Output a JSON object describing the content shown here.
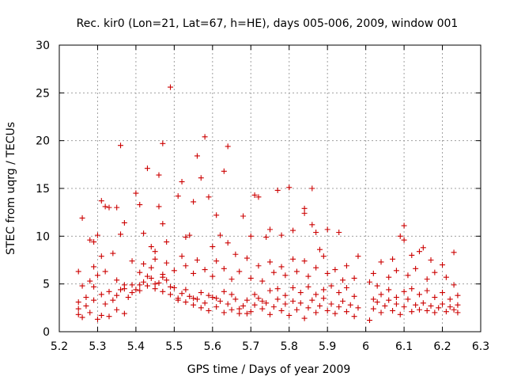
{
  "chart_data": {
    "type": "scatter",
    "title": "Rec. kir0 (Lon=21, Lat=67, h=HE), days 005-006, 2009, window 001",
    "xlabel": "GPS time / Days of year 2009",
    "ylabel": "STEC from uqrg / TECUs",
    "xlim": [
      5.2,
      6.3
    ],
    "ylim": [
      0,
      30
    ],
    "x_ticks": [
      "5.2",
      "5.3",
      "5.4",
      "5.5",
      "5.6",
      "5.7",
      "5.8",
      "5.9",
      "6",
      "6.1",
      "6.2",
      "6.3"
    ],
    "y_ticks": [
      "0",
      "5",
      "10",
      "15",
      "20",
      "25",
      "30"
    ],
    "grid": true,
    "marker": "+",
    "color": "#cc0000",
    "series": [
      {
        "points": [
          [
            5.25,
            6.3
          ],
          [
            5.26,
            11.9
          ],
          [
            5.28,
            9.6
          ],
          [
            5.29,
            9.4
          ],
          [
            5.3,
            10.1
          ],
          [
            5.31,
            13.7
          ],
          [
            5.32,
            13.1
          ],
          [
            5.33,
            13.0
          ],
          [
            5.35,
            13.0
          ],
          [
            5.36,
            19.5
          ],
          [
            5.37,
            11.4
          ],
          [
            5.36,
            10.2
          ],
          [
            5.4,
            14.5
          ],
          [
            5.41,
            13.3
          ],
          [
            5.42,
            10.3
          ],
          [
            5.43,
            17.1
          ],
          [
            5.44,
            8.9
          ],
          [
            5.45,
            8.4
          ],
          [
            5.46,
            16.4
          ],
          [
            5.46,
            13.1
          ],
          [
            5.47,
            19.7
          ],
          [
            5.47,
            11.3
          ],
          [
            5.48,
            9.4
          ],
          [
            5.49,
            25.6
          ],
          [
            5.51,
            14.2
          ],
          [
            5.52,
            15.7
          ],
          [
            5.53,
            9.9
          ],
          [
            5.54,
            10.1
          ],
          [
            5.55,
            13.6
          ],
          [
            5.56,
            18.4
          ],
          [
            5.57,
            16.1
          ],
          [
            5.58,
            20.4
          ],
          [
            5.59,
            14.1
          ],
          [
            5.6,
            8.9
          ],
          [
            5.61,
            12.2
          ],
          [
            5.62,
            10.1
          ],
          [
            5.63,
            16.8
          ],
          [
            5.64,
            19.4
          ],
          [
            5.64,
            9.3
          ],
          [
            5.66,
            8.1
          ],
          [
            5.68,
            12.1
          ],
          [
            5.7,
            10.0
          ],
          [
            5.71,
            14.3
          ],
          [
            5.72,
            14.1
          ],
          [
            5.74,
            9.9
          ],
          [
            5.75,
            10.7
          ],
          [
            5.77,
            14.8
          ],
          [
            5.78,
            10.1
          ],
          [
            5.8,
            15.1
          ],
          [
            5.81,
            10.6
          ],
          [
            5.84,
            12.9
          ],
          [
            5.84,
            12.4
          ],
          [
            5.86,
            15.0
          ],
          [
            5.86,
            11.2
          ],
          [
            5.87,
            10.4
          ],
          [
            5.88,
            8.6
          ],
          [
            5.9,
            10.7
          ],
          [
            5.93,
            10.4
          ],
          [
            6.02,
            6.1
          ],
          [
            6.04,
            7.3
          ],
          [
            6.07,
            7.6
          ],
          [
            6.09,
            10.0
          ],
          [
            6.1,
            11.1
          ],
          [
            6.1,
            9.6
          ],
          [
            6.12,
            8.0
          ],
          [
            6.14,
            8.4
          ],
          [
            6.15,
            8.8
          ],
          [
            6.17,
            7.5
          ],
          [
            6.2,
            7.0
          ],
          [
            6.23,
            8.3
          ],
          [
            5.25,
            3.1
          ],
          [
            5.25,
            2.4
          ],
          [
            5.26,
            1.5
          ],
          [
            5.27,
            3.6
          ],
          [
            5.28,
            2.0
          ],
          [
            5.29,
            4.7
          ],
          [
            5.3,
            1.3
          ],
          [
            5.31,
            3.9
          ],
          [
            5.32,
            2.9
          ],
          [
            5.33,
            1.6
          ],
          [
            5.34,
            3.3
          ],
          [
            5.35,
            2.3
          ],
          [
            5.36,
            4.4
          ],
          [
            5.37,
            1.9
          ],
          [
            5.38,
            3.6
          ],
          [
            5.39,
            4.1
          ],
          [
            5.4,
            4.4
          ],
          [
            5.41,
            4.9
          ],
          [
            5.42,
            5.2
          ],
          [
            5.43,
            4.8
          ],
          [
            5.44,
            5.6
          ],
          [
            5.45,
            4.5
          ],
          [
            5.46,
            5.1
          ],
          [
            5.47,
            4.2
          ],
          [
            5.48,
            5.4
          ],
          [
            5.49,
            3.9
          ],
          [
            5.5,
            4.6
          ],
          [
            5.51,
            3.5
          ],
          [
            5.52,
            4.0
          ],
          [
            5.53,
            3.1
          ],
          [
            5.54,
            3.7
          ],
          [
            5.55,
            2.8
          ],
          [
            5.56,
            3.4
          ],
          [
            5.57,
            2.5
          ],
          [
            5.58,
            3.0
          ],
          [
            5.59,
            2.2
          ],
          [
            5.6,
            3.6
          ],
          [
            5.61,
            2.6
          ],
          [
            5.62,
            3.2
          ],
          [
            5.63,
            2.0
          ],
          [
            5.64,
            2.9
          ],
          [
            5.65,
            2.3
          ],
          [
            5.66,
            3.4
          ],
          [
            5.67,
            1.9
          ],
          [
            5.68,
            2.7
          ],
          [
            5.69,
            3.3
          ],
          [
            5.7,
            2.1
          ],
          [
            5.71,
            2.8
          ],
          [
            5.72,
            3.5
          ],
          [
            5.73,
            2.4
          ],
          [
            5.74,
            3.0
          ],
          [
            5.75,
            1.8
          ],
          [
            5.76,
            2.6
          ],
          [
            5.77,
            3.4
          ],
          [
            5.78,
            2.2
          ],
          [
            5.79,
            2.9
          ],
          [
            5.8,
            1.7
          ],
          [
            5.81,
            3.2
          ],
          [
            5.82,
            2.3
          ],
          [
            5.83,
            3.0
          ],
          [
            5.84,
            1.4
          ],
          [
            5.85,
            2.5
          ],
          [
            5.86,
            3.3
          ],
          [
            5.87,
            2.0
          ],
          [
            5.88,
            2.7
          ],
          [
            5.89,
            3.5
          ],
          [
            5.9,
            2.2
          ],
          [
            5.91,
            2.9
          ],
          [
            5.92,
            1.9
          ],
          [
            5.93,
            2.6
          ],
          [
            5.94,
            3.2
          ],
          [
            5.95,
            2.1
          ],
          [
            5.96,
            2.8
          ],
          [
            5.97,
            1.6
          ],
          [
            5.98,
            2.5
          ],
          [
            6.01,
            1.2
          ],
          [
            6.02,
            2.4
          ],
          [
            6.03,
            3.1
          ],
          [
            6.04,
            2.0
          ],
          [
            6.05,
            2.7
          ],
          [
            6.06,
            3.3
          ],
          [
            6.07,
            2.2
          ],
          [
            6.08,
            2.9
          ],
          [
            6.09,
            1.8
          ],
          [
            6.1,
            2.6
          ],
          [
            6.11,
            3.4
          ],
          [
            6.12,
            2.1
          ],
          [
            6.13,
            2.8
          ],
          [
            6.14,
            2.3
          ],
          [
            6.15,
            3.0
          ],
          [
            6.16,
            2.2
          ],
          [
            6.17,
            2.7
          ],
          [
            6.18,
            2.0
          ],
          [
            6.19,
            2.5
          ],
          [
            6.2,
            2.9
          ],
          [
            6.21,
            2.1
          ],
          [
            6.22,
            2.6
          ],
          [
            6.23,
            2.3
          ],
          [
            6.24,
            2.8
          ],
          [
            6.24,
            2.0
          ],
          [
            5.26,
            4.8
          ],
          [
            5.28,
            5.3
          ],
          [
            5.29,
            6.8
          ],
          [
            5.3,
            5.9
          ],
          [
            5.31,
            7.9
          ],
          [
            5.32,
            6.3
          ],
          [
            5.34,
            8.2
          ],
          [
            5.35,
            5.4
          ],
          [
            5.37,
            4.9
          ],
          [
            5.39,
            7.4
          ],
          [
            5.41,
            6.2
          ],
          [
            5.42,
            7.1
          ],
          [
            5.44,
            6.7
          ],
          [
            5.45,
            7.6
          ],
          [
            5.47,
            6.0
          ],
          [
            5.48,
            7.2
          ],
          [
            5.5,
            6.4
          ],
          [
            5.52,
            7.9
          ],
          [
            5.53,
            6.9
          ],
          [
            5.55,
            6.1
          ],
          [
            5.56,
            7.5
          ],
          [
            5.58,
            6.5
          ],
          [
            5.6,
            5.8
          ],
          [
            5.61,
            7.4
          ],
          [
            5.63,
            6.6
          ],
          [
            5.65,
            5.5
          ],
          [
            5.67,
            6.3
          ],
          [
            5.69,
            7.7
          ],
          [
            5.7,
            5.6
          ],
          [
            5.72,
            6.9
          ],
          [
            5.73,
            5.3
          ],
          [
            5.75,
            7.3
          ],
          [
            5.76,
            6.2
          ],
          [
            5.78,
            6.8
          ],
          [
            5.79,
            5.9
          ],
          [
            5.81,
            7.6
          ],
          [
            5.82,
            6.3
          ],
          [
            5.84,
            7.4
          ],
          [
            5.85,
            5.8
          ],
          [
            5.87,
            6.7
          ],
          [
            5.89,
            7.9
          ],
          [
            5.9,
            6.1
          ],
          [
            5.92,
            6.5
          ],
          [
            5.94,
            5.4
          ],
          [
            5.95,
            6.9
          ],
          [
            5.97,
            5.6
          ],
          [
            5.98,
            7.9
          ],
          [
            6.01,
            5.2
          ],
          [
            6.03,
            4.8
          ],
          [
            6.06,
            5.7
          ],
          [
            6.08,
            6.4
          ],
          [
            6.11,
            5.9
          ],
          [
            6.13,
            6.6
          ],
          [
            6.16,
            5.5
          ],
          [
            6.18,
            6.2
          ],
          [
            6.21,
            5.7
          ],
          [
            6.23,
            4.9
          ],
          [
            5.25,
            1.8
          ],
          [
            5.27,
            2.7
          ],
          [
            5.29,
            3.3
          ],
          [
            5.31,
            1.7
          ],
          [
            5.33,
            4.2
          ],
          [
            5.35,
            3.8
          ],
          [
            5.37,
            4.5
          ],
          [
            5.39,
            4.9
          ],
          [
            5.41,
            4.3
          ],
          [
            5.43,
            5.8
          ],
          [
            5.45,
            5.0
          ],
          [
            5.47,
            5.7
          ],
          [
            5.49,
            4.7
          ],
          [
            5.51,
            3.3
          ],
          [
            5.53,
            4.4
          ],
          [
            5.55,
            3.5
          ],
          [
            5.57,
            4.1
          ],
          [
            5.59,
            3.8
          ],
          [
            5.61,
            3.5
          ],
          [
            5.63,
            4.2
          ],
          [
            5.65,
            3.9
          ],
          [
            5.67,
            2.4
          ],
          [
            5.69,
            1.9
          ],
          [
            5.71,
            3.9
          ],
          [
            5.73,
            3.2
          ],
          [
            5.75,
            4.3
          ],
          [
            5.77,
            4.5
          ],
          [
            5.79,
            3.8
          ],
          [
            5.81,
            4.6
          ],
          [
            5.83,
            4.1
          ],
          [
            5.85,
            4.7
          ],
          [
            5.87,
            3.9
          ],
          [
            5.89,
            4.4
          ],
          [
            5.91,
            4.8
          ],
          [
            5.93,
            4.1
          ],
          [
            5.95,
            4.6
          ],
          [
            5.97,
            3.7
          ],
          [
            6.02,
            3.4
          ],
          [
            6.04,
            3.9
          ],
          [
            6.06,
            4.4
          ],
          [
            6.08,
            3.6
          ],
          [
            6.1,
            4.2
          ],
          [
            6.12,
            4.5
          ],
          [
            6.14,
            3.9
          ],
          [
            6.16,
            4.3
          ],
          [
            6.18,
            3.6
          ],
          [
            6.2,
            4.1
          ],
          [
            6.22,
            3.4
          ],
          [
            6.24,
            3.8
          ]
        ]
      }
    ]
  }
}
